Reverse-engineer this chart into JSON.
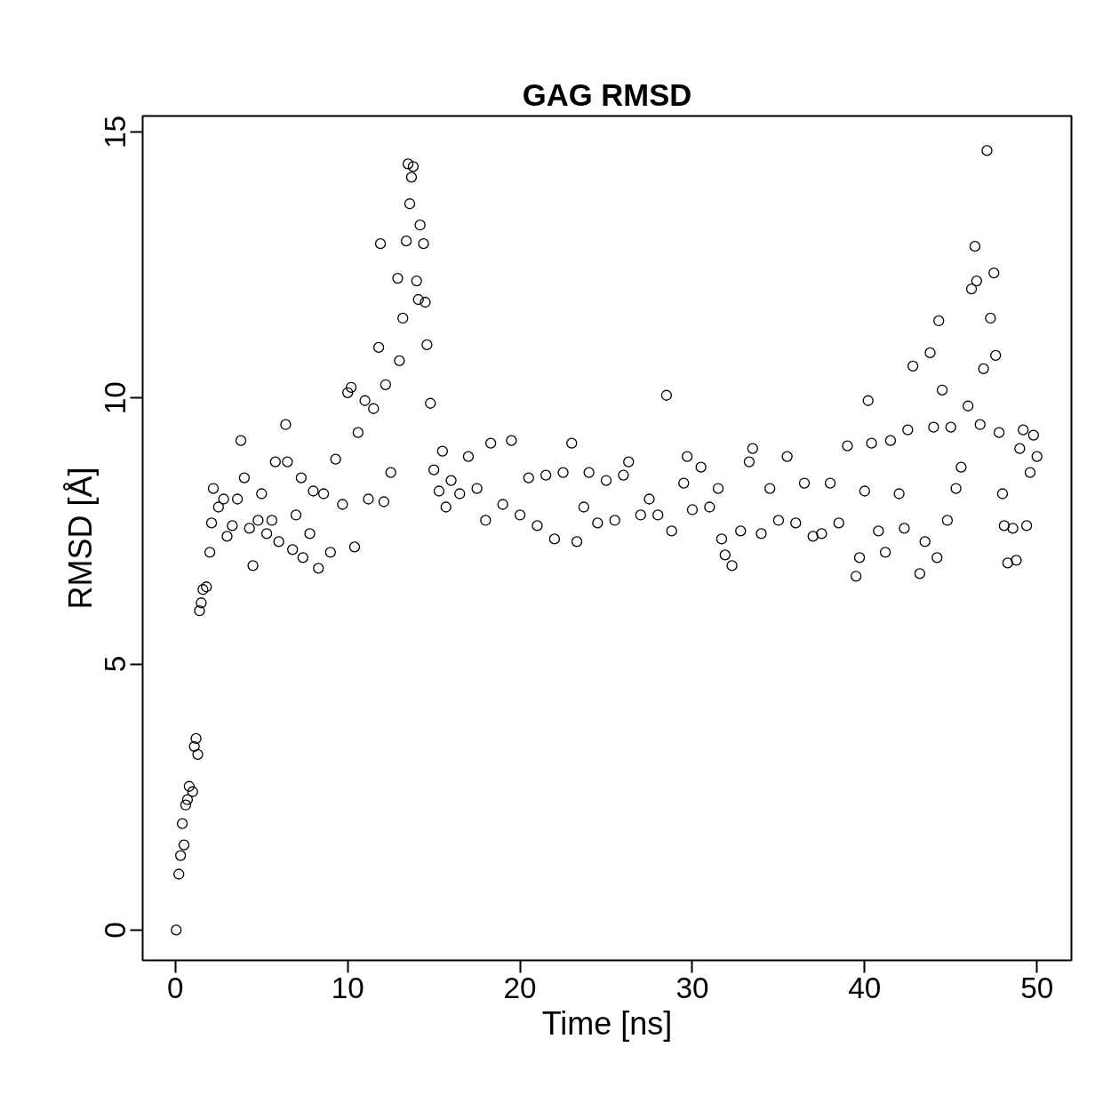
{
  "chart_data": {
    "type": "scatter",
    "title": "GAG RMSD",
    "xlabel": "Time [ns]",
    "ylabel": "RMSD [Å]",
    "color": "#000000",
    "marker": "circle",
    "grid": false,
    "xlim": [
      -1.9,
      52.0
    ],
    "ylim": [
      -0.57,
      15.3
    ],
    "xticks": [
      0,
      10,
      20,
      30,
      40,
      50
    ],
    "yticks": [
      0,
      5,
      10,
      15
    ],
    "x": [
      0.05,
      0.2,
      0.3,
      0.4,
      0.5,
      0.6,
      0.7,
      0.8,
      1.0,
      1.1,
      1.2,
      1.3,
      1.4,
      1.5,
      1.6,
      1.8,
      2.0,
      2.1,
      2.2,
      2.5,
      2.8,
      3.0,
      3.3,
      3.6,
      3.8,
      4.0,
      4.3,
      4.5,
      4.8,
      5.0,
      5.3,
      5.6,
      5.8,
      6.0,
      6.4,
      6.5,
      6.8,
      7.0,
      7.3,
      7.4,
      7.8,
      8.0,
      8.3,
      8.6,
      9.0,
      9.3,
      9.7,
      10.0,
      10.2,
      10.4,
      10.6,
      11.0,
      11.2,
      11.5,
      11.8,
      11.9,
      12.1,
      12.2,
      12.5,
      12.9,
      13.0,
      13.2,
      13.4,
      13.5,
      13.6,
      13.7,
      13.8,
      14.0,
      14.1,
      14.2,
      14.4,
      14.5,
      14.6,
      14.8,
      15.0,
      15.3,
      15.5,
      15.7,
      16.0,
      16.5,
      17.0,
      17.5,
      18.0,
      18.3,
      19.0,
      19.5,
      20.0,
      20.5,
      21.0,
      21.5,
      22.0,
      22.5,
      23.0,
      23.3,
      23.7,
      24.0,
      24.5,
      25.0,
      25.5,
      26.0,
      26.3,
      27.0,
      27.5,
      28.0,
      28.5,
      28.8,
      29.5,
      29.7,
      30.0,
      30.5,
      31.0,
      31.5,
      31.7,
      31.9,
      32.3,
      32.8,
      33.3,
      33.5,
      34.0,
      34.5,
      35.0,
      35.5,
      36.0,
      36.5,
      37.0,
      37.5,
      38.0,
      38.5,
      39.0,
      39.5,
      39.7,
      40.0,
      40.2,
      40.4,
      40.8,
      41.2,
      41.5,
      42.0,
      42.3,
      42.5,
      42.8,
      43.2,
      43.5,
      43.8,
      44.0,
      44.2,
      44.3,
      44.5,
      44.8,
      45.0,
      45.3,
      45.6,
      46.0,
      46.2,
      46.4,
      46.5,
      46.7,
      46.9,
      47.1,
      47.3,
      47.5,
      47.6,
      47.8,
      48.0,
      48.1,
      48.3,
      48.6,
      48.8,
      49.0,
      49.2,
      49.4,
      49.6,
      49.8,
      50.0
    ],
    "values": [
      0,
      1.05,
      1.4,
      2.0,
      1.6,
      2.35,
      2.45,
      2.7,
      2.6,
      3.45,
      3.6,
      3.3,
      6.0,
      6.15,
      6.4,
      6.45,
      7.1,
      7.65,
      8.3,
      7.95,
      8.1,
      7.4,
      7.6,
      8.1,
      9.2,
      8.5,
      7.55,
      6.85,
      7.7,
      8.2,
      7.45,
      7.7,
      8.8,
      7.3,
      9.5,
      8.8,
      7.15,
      7.8,
      8.5,
      7.0,
      7.45,
      8.25,
      6.8,
      8.2,
      7.1,
      8.85,
      8.0,
      10.1,
      10.2,
      7.2,
      9.35,
      9.95,
      8.1,
      9.8,
      10.95,
      12.9,
      8.05,
      10.25,
      8.6,
      12.25,
      10.7,
      11.5,
      12.95,
      14.4,
      13.65,
      14.15,
      14.35,
      12.2,
      11.85,
      13.25,
      12.9,
      11.8,
      11.0,
      9.9,
      8.65,
      8.25,
      9.0,
      7.95,
      8.45,
      8.2,
      8.9,
      8.3,
      7.7,
      9.15,
      8.0,
      9.2,
      7.8,
      8.5,
      7.6,
      8.55,
      7.35,
      8.6,
      9.15,
      7.3,
      7.95,
      8.6,
      7.65,
      8.45,
      7.7,
      8.55,
      8.8,
      7.8,
      8.1,
      7.8,
      10.05,
      7.5,
      8.4,
      8.9,
      7.9,
      8.7,
      7.95,
      8.3,
      7.35,
      7.05,
      6.85,
      7.5,
      8.8,
      9.05,
      7.45,
      8.3,
      7.7,
      8.9,
      7.65,
      8.4,
      7.4,
      7.45,
      8.4,
      7.65,
      9.1,
      6.65,
      7.0,
      8.25,
      9.95,
      9.15,
      7.5,
      7.1,
      9.2,
      8.2,
      7.55,
      9.4,
      10.6,
      6.7,
      7.3,
      10.85,
      9.45,
      7.0,
      11.45,
      10.15,
      7.7,
      9.45,
      8.3,
      8.7,
      9.85,
      12.05,
      12.85,
      12.2,
      9.5,
      10.55,
      14.65,
      11.5,
      12.35,
      10.8,
      9.35,
      8.2,
      7.6,
      6.9,
      7.55,
      6.95,
      9.05,
      9.4,
      7.6,
      8.6,
      9.3,
      8.9
    ]
  }
}
